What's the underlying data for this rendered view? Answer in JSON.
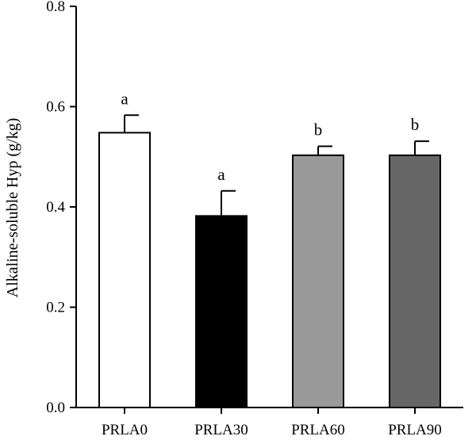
{
  "chart_data": {
    "type": "bar",
    "title": "",
    "xlabel": "",
    "ylabel": "Alkaline-soluble Hyp (g/kg)",
    "ylim": [
      0,
      0.8
    ],
    "yticks": [
      "0.0",
      "0.2",
      "0.4",
      "0.6",
      "0.8"
    ],
    "categories": [
      "PRLA0",
      "PRLA30",
      "PRLA60",
      "PRLA90"
    ],
    "values": [
      0.548,
      0.382,
      0.503,
      0.503
    ],
    "errors": [
      0.035,
      0.05,
      0.018,
      0.028
    ],
    "significance": [
      "a",
      "a",
      "b",
      "b"
    ],
    "bar_colors": [
      "#ffffff",
      "#000000",
      "#999999",
      "#666666"
    ],
    "grid": false,
    "legend": "none"
  }
}
